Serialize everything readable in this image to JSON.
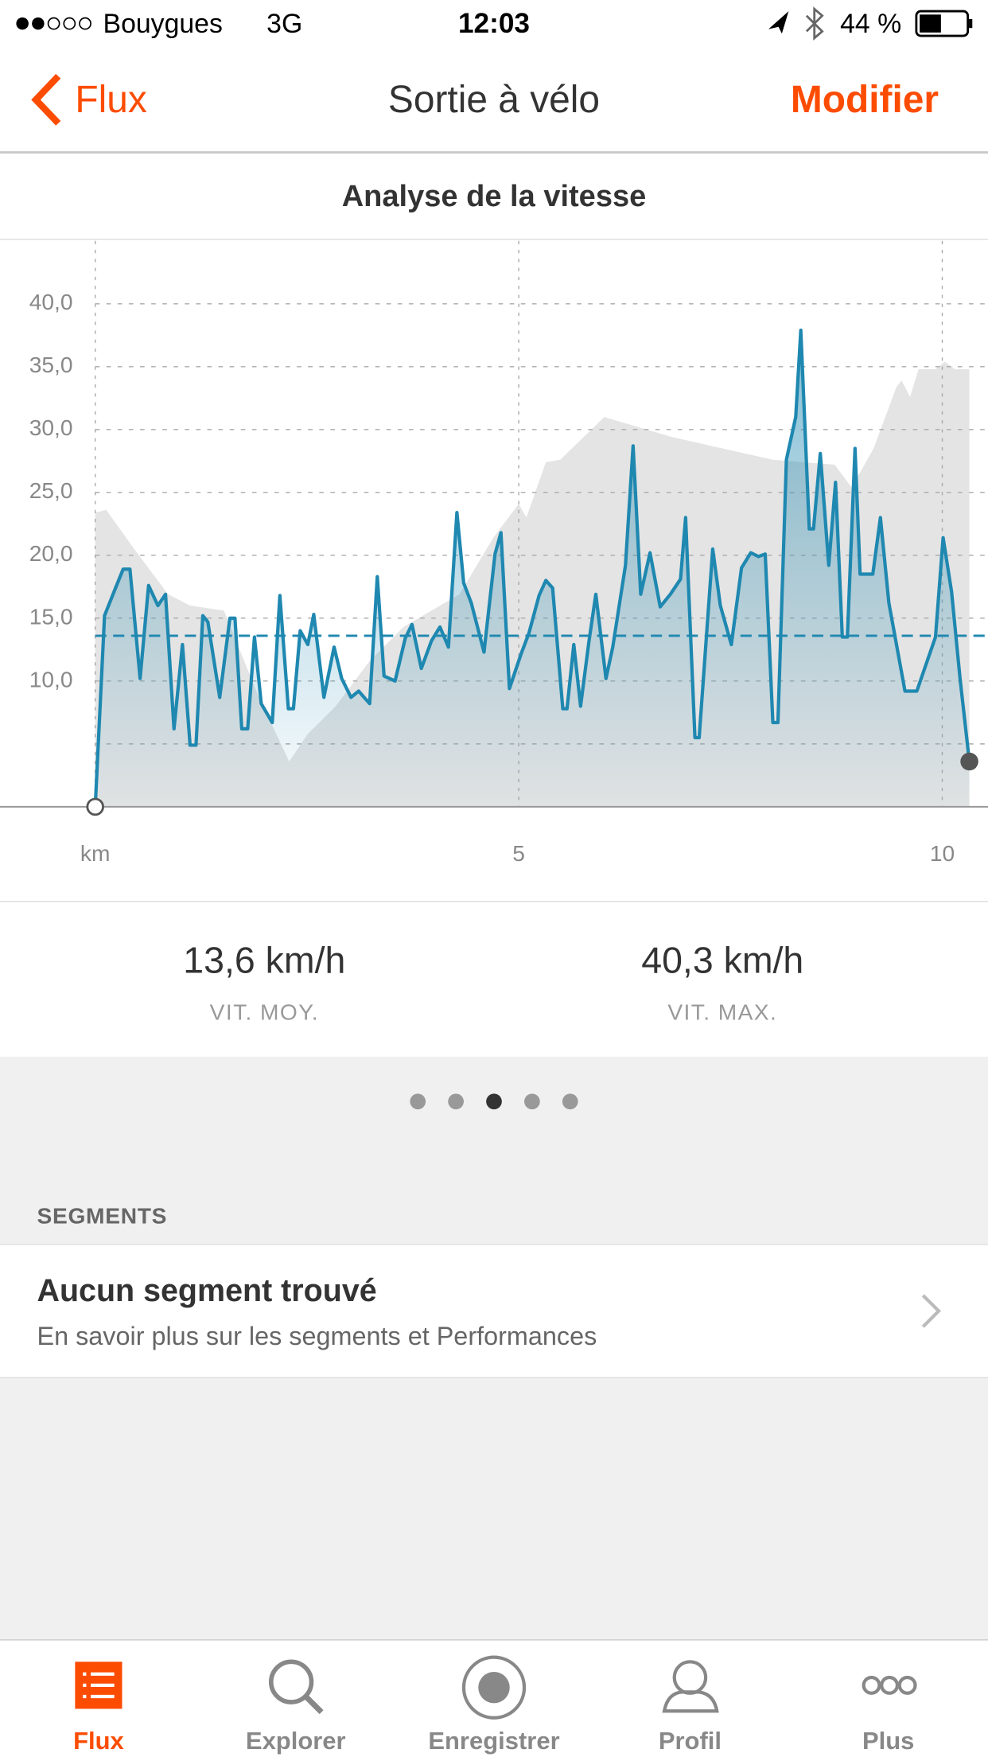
{
  "status_bar": {
    "carrier": "Bouygues",
    "network": "3G",
    "time": "12:03",
    "battery": "44 %"
  },
  "nav": {
    "back": "Flux",
    "title": "Sortie à vélo",
    "action": "Modifier"
  },
  "chart_data": {
    "type": "line",
    "title": "Analyse de la vitesse",
    "xlim": [
      0,
      10.54
    ],
    "xticks": [
      {
        "value": 0,
        "label": "km"
      },
      5,
      10
    ],
    "ylim": [
      0,
      45
    ],
    "yticks": [
      {
        "value": 5,
        "label": null
      },
      {
        "value": 10,
        "label": "10,0"
      },
      {
        "value": 15,
        "label": "15,0"
      },
      {
        "value": 20,
        "label": "20,0"
      },
      {
        "value": 25,
        "label": "25,0"
      },
      {
        "value": 30,
        "label": "30,0"
      },
      {
        "value": 35,
        "label": "35,0"
      },
      {
        "value": 40,
        "label": "40,0"
      }
    ],
    "grid": true,
    "average": 13.6,
    "series": [
      {
        "color": "#e4e4e4",
        "x": [
          0,
          0.13,
          0.46,
          0.86,
          1.12,
          1.52,
          1.92,
          2.29,
          2.51,
          2.84,
          3.24,
          3.64,
          3.97,
          4.3,
          4.7,
          5.0,
          5.09,
          5.32,
          5.49,
          6.01,
          6.81,
          8.0,
          8.73,
          8.93,
          9.19,
          9.46,
          9.52,
          9.62,
          9.72,
          9.92,
          10.03,
          10.15,
          10.32
        ],
        "values": [
          23.4,
          23.6,
          20.5,
          16.9,
          16.0,
          15.6,
          8.9,
          3.6,
          5.8,
          8.0,
          11.6,
          14.3,
          15.6,
          16.9,
          21.4,
          24.1,
          23.0,
          27.4,
          27.6,
          31.0,
          29.4,
          27.6,
          27.2,
          25.4,
          28.5,
          33.4,
          33.9,
          32.6,
          34.8,
          34.8,
          35.4,
          34.8,
          34.8
        ]
      },
      {
        "color": "#1f88b0",
        "x": [
          0,
          0.11,
          0.24,
          0.33,
          0.41,
          0.53,
          0.63,
          0.74,
          0.83,
          0.93,
          1.03,
          1.12,
          1.19,
          1.27,
          1.33,
          1.47,
          1.59,
          1.65,
          1.73,
          1.8,
          1.88,
          1.96,
          2.09,
          2.18,
          2.28,
          2.34,
          2.42,
          2.51,
          2.58,
          2.7,
          2.82,
          2.91,
          3.02,
          3.11,
          3.24,
          3.33,
          3.41,
          3.54,
          3.66,
          3.74,
          3.85,
          3.97,
          4.07,
          4.17,
          4.27,
          4.35,
          4.44,
          4.59,
          4.72,
          4.79,
          4.89,
          5.03,
          5.12,
          5.24,
          5.32,
          5.4,
          5.52,
          5.57,
          5.65,
          5.73,
          5.83,
          5.91,
          6.03,
          6.11,
          6.26,
          6.35,
          6.44,
          6.55,
          6.67,
          6.79,
          6.91,
          6.97,
          7.08,
          7.13,
          7.29,
          7.38,
          7.51,
          7.63,
          7.74,
          7.83,
          7.91,
          8.0,
          8.06,
          8.16,
          8.27,
          8.33,
          8.43,
          8.48,
          8.56,
          8.66,
          8.74,
          8.82,
          8.88,
          8.97,
          9.03,
          9.18,
          9.27,
          9.37,
          9.56,
          9.7,
          9.92,
          10.01,
          10.11,
          10.21,
          10.32
        ],
        "values": [
          0,
          15.2,
          17.4,
          18.9,
          18.9,
          10.2,
          17.6,
          16.0,
          16.9,
          6.2,
          12.9,
          4.9,
          4.9,
          15.2,
          14.7,
          8.7,
          15.0,
          15.0,
          6.2,
          6.2,
          13.5,
          8.2,
          6.7,
          16.8,
          7.8,
          7.8,
          14.0,
          12.9,
          15.3,
          8.7,
          12.7,
          10.2,
          8.7,
          9.2,
          8.2,
          18.3,
          10.4,
          10.0,
          13.4,
          14.5,
          11.0,
          13.2,
          14.3,
          12.7,
          23.4,
          17.8,
          16.2,
          12.3,
          20.1,
          21.8,
          9.4,
          12.2,
          13.8,
          16.8,
          18.0,
          17.4,
          7.8,
          7.8,
          12.9,
          8.0,
          13.2,
          16.9,
          10.2,
          12.7,
          19.2,
          28.7,
          16.9,
          20.2,
          15.9,
          16.9,
          18.1,
          23.0,
          5.5,
          5.5,
          20.5,
          16.0,
          12.9,
          19.0,
          20.2,
          19.9,
          20.1,
          6.7,
          6.7,
          27.6,
          31.0,
          37.9,
          22.1,
          22.1,
          28.1,
          19.2,
          25.8,
          13.5,
          13.5,
          28.5,
          18.5,
          18.5,
          23.0,
          16.2,
          9.2,
          9.2,
          13.5,
          21.4,
          17.1,
          10.2,
          3.6
        ]
      }
    ]
  },
  "stats": [
    {
      "value": "13,6 km/h",
      "label": "VIT. MOY."
    },
    {
      "value": "40,3 km/h",
      "label": "VIT. MAX."
    }
  ],
  "pager": {
    "count": 5,
    "active": 2
  },
  "segments": {
    "header": "SEGMENTS",
    "title": "Aucun segment trouvé",
    "subtitle": "En savoir plus sur les segments et Performances"
  },
  "tabs": [
    "Flux",
    "Explorer",
    "Enregistrer",
    "Profil",
    "Plus"
  ]
}
